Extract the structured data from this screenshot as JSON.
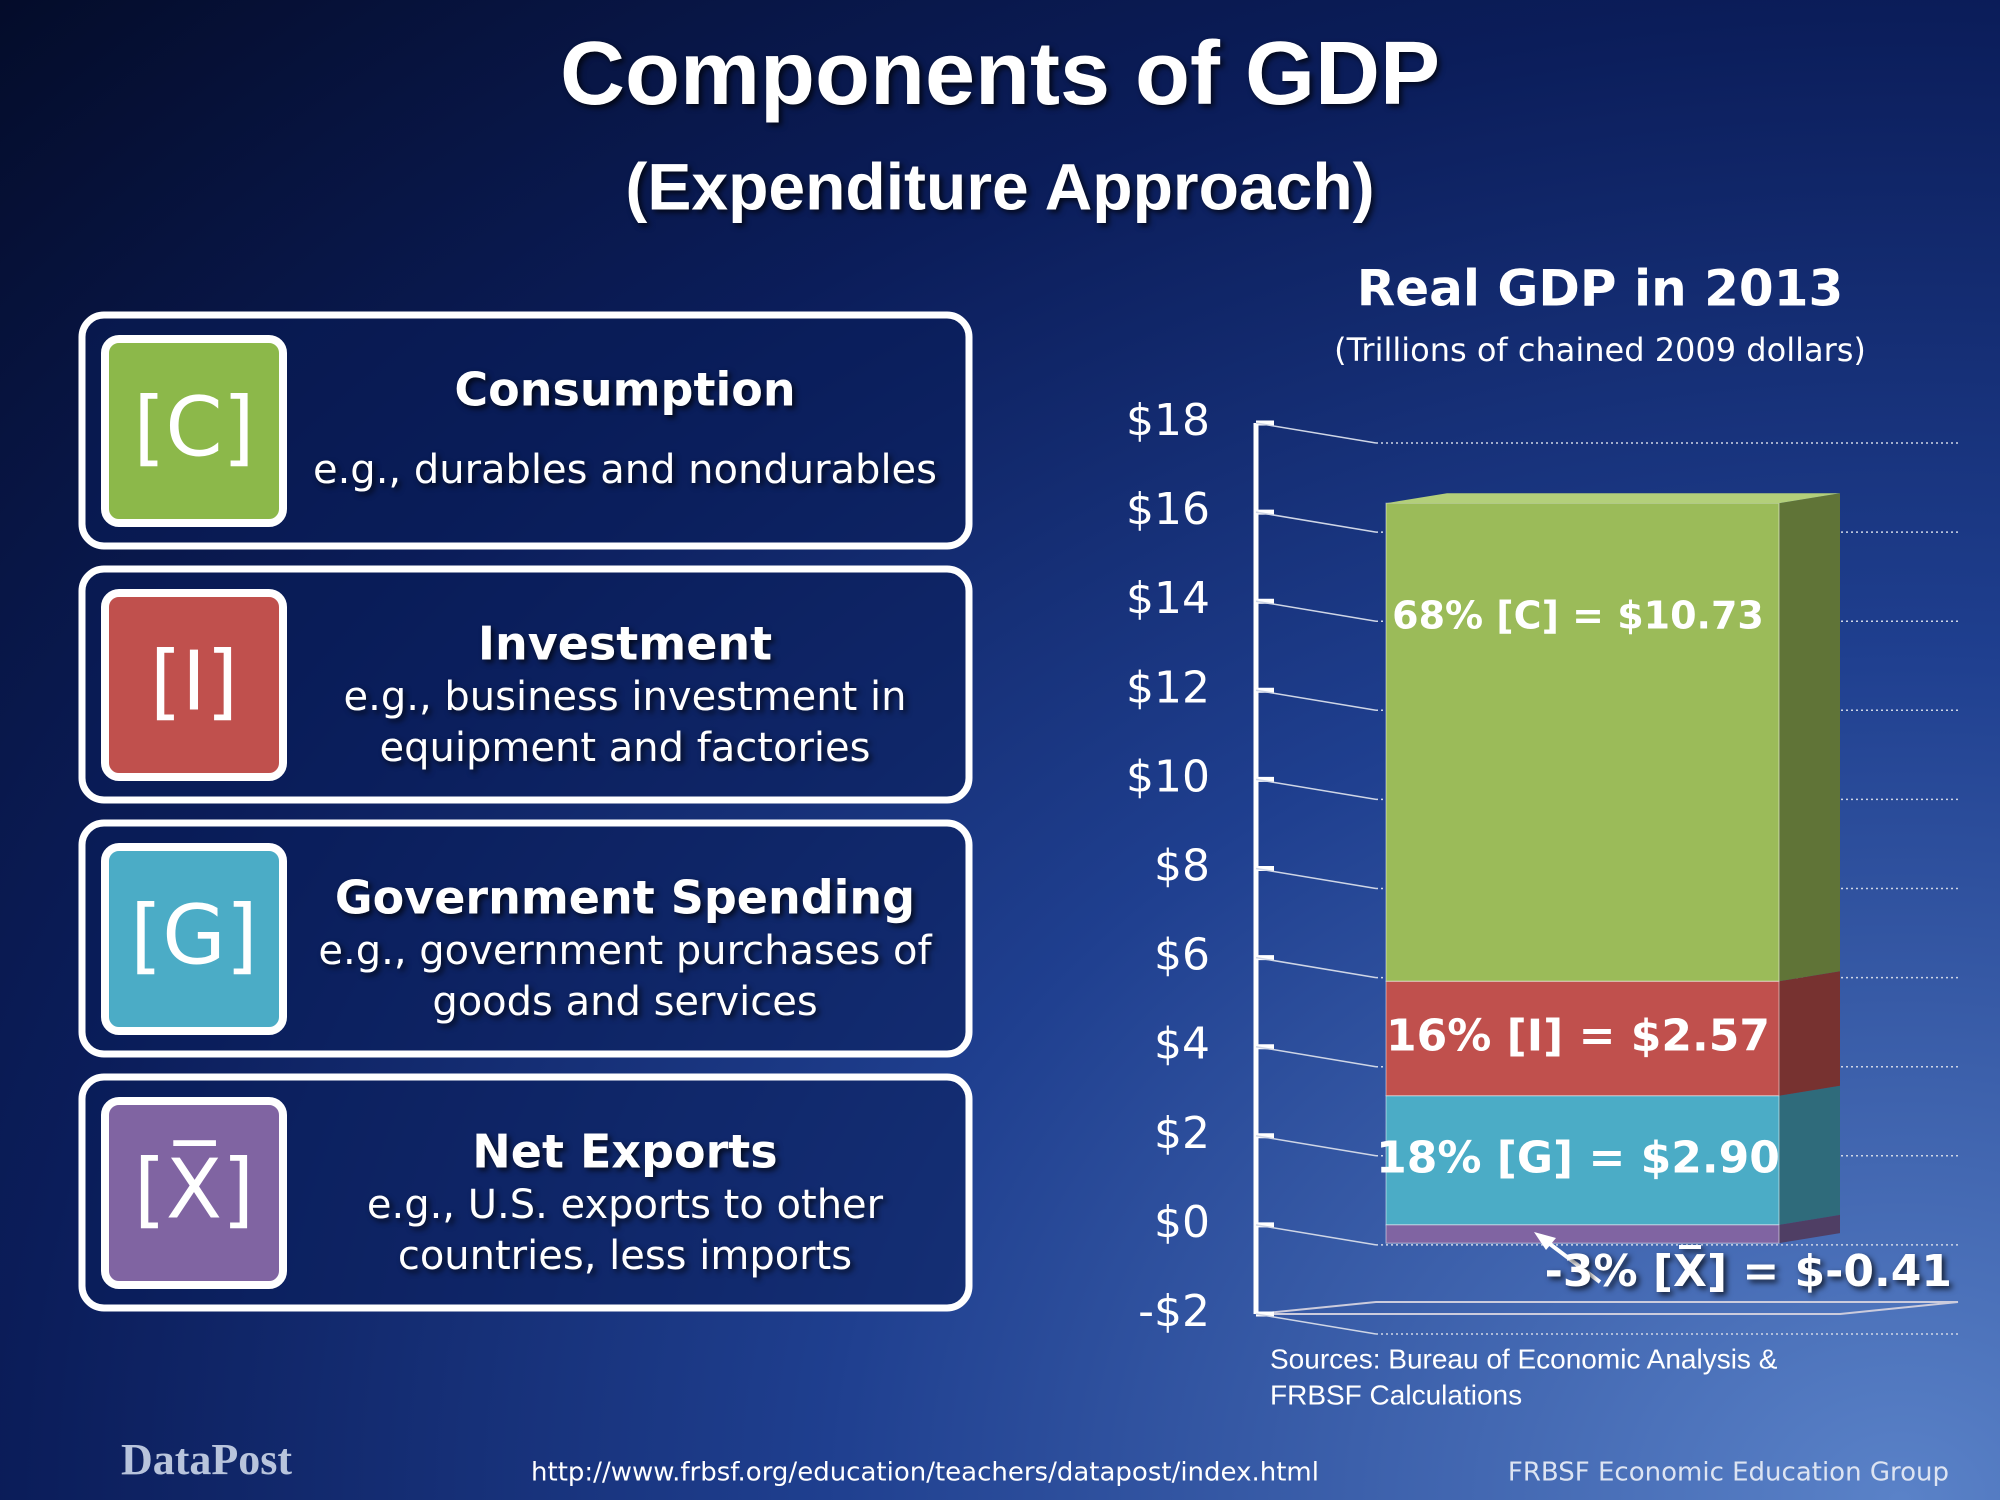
{
  "header": {
    "title": "Components of GDP",
    "subtitle": "(Expenditure Approach)"
  },
  "components": [
    {
      "symbol": "[C]",
      "name": "Consumption",
      "desc": [
        "e.g., durables and nondurables"
      ],
      "color": "#8cb84a"
    },
    {
      "symbol": "[I]",
      "name": "Investment",
      "desc": [
        "e.g., business investment in",
        "equipment and factories"
      ],
      "color": "#c0504d"
    },
    {
      "symbol": "[G]",
      "name": "Government Spending",
      "desc": [
        "e.g., government purchases of",
        "goods and services"
      ],
      "color": "#4bacc6"
    },
    {
      "symbol": "[X̅]",
      "name": "Net Exports",
      "desc": [
        "e.g., U.S. exports  to other",
        "countries, less imports"
      ],
      "color": "#8064a2"
    }
  ],
  "chart_data": {
    "type": "bar",
    "stacked": true,
    "title": "Real GDP in 2013",
    "subtitle": "(Trillions of chained 2009 dollars)",
    "series": [
      {
        "color": "#4bacc6",
        "values": [
          2.9
        ],
        "value_labels": [
          "18% [G] = $2.90"
        ]
      },
      {
        "color": "#c0504d",
        "values": [
          2.57
        ],
        "value_labels": [
          "16% [I] = $2.57"
        ]
      },
      {
        "color": "#9bbb59",
        "values": [
          10.73
        ],
        "value_labels": [
          "68% [C] = $10.73"
        ]
      },
      {
        "color": "#8064a2",
        "values": [
          -0.41
        ],
        "value_labels": [
          "-3% [X̅] = $-0.41"
        ]
      }
    ],
    "ylim": [
      -2,
      18
    ],
    "yticks": [
      {
        "value": -2,
        "label": "-$2"
      },
      {
        "value": 0,
        "label": "$0"
      },
      {
        "value": 2,
        "label": "$2"
      },
      {
        "value": 4,
        "label": "$4"
      },
      {
        "value": 6,
        "label": "$6"
      },
      {
        "value": 8,
        "label": "$8"
      },
      {
        "value": 10,
        "label": "$10"
      },
      {
        "value": 12,
        "label": "$12"
      },
      {
        "value": 14,
        "label": "$14"
      },
      {
        "value": 16,
        "label": "$16"
      },
      {
        "value": 18,
        "label": "$18"
      }
    ],
    "grid": true,
    "source": [
      "Sources: Bureau of Economic Analysis &",
      "FRBSF Calculations"
    ]
  },
  "footer": {
    "logo": "DataPost",
    "url": "http://www.frbsf.org/education/teachers/datapost/index.html",
    "credit": "FRBSF Economic Education Group"
  }
}
